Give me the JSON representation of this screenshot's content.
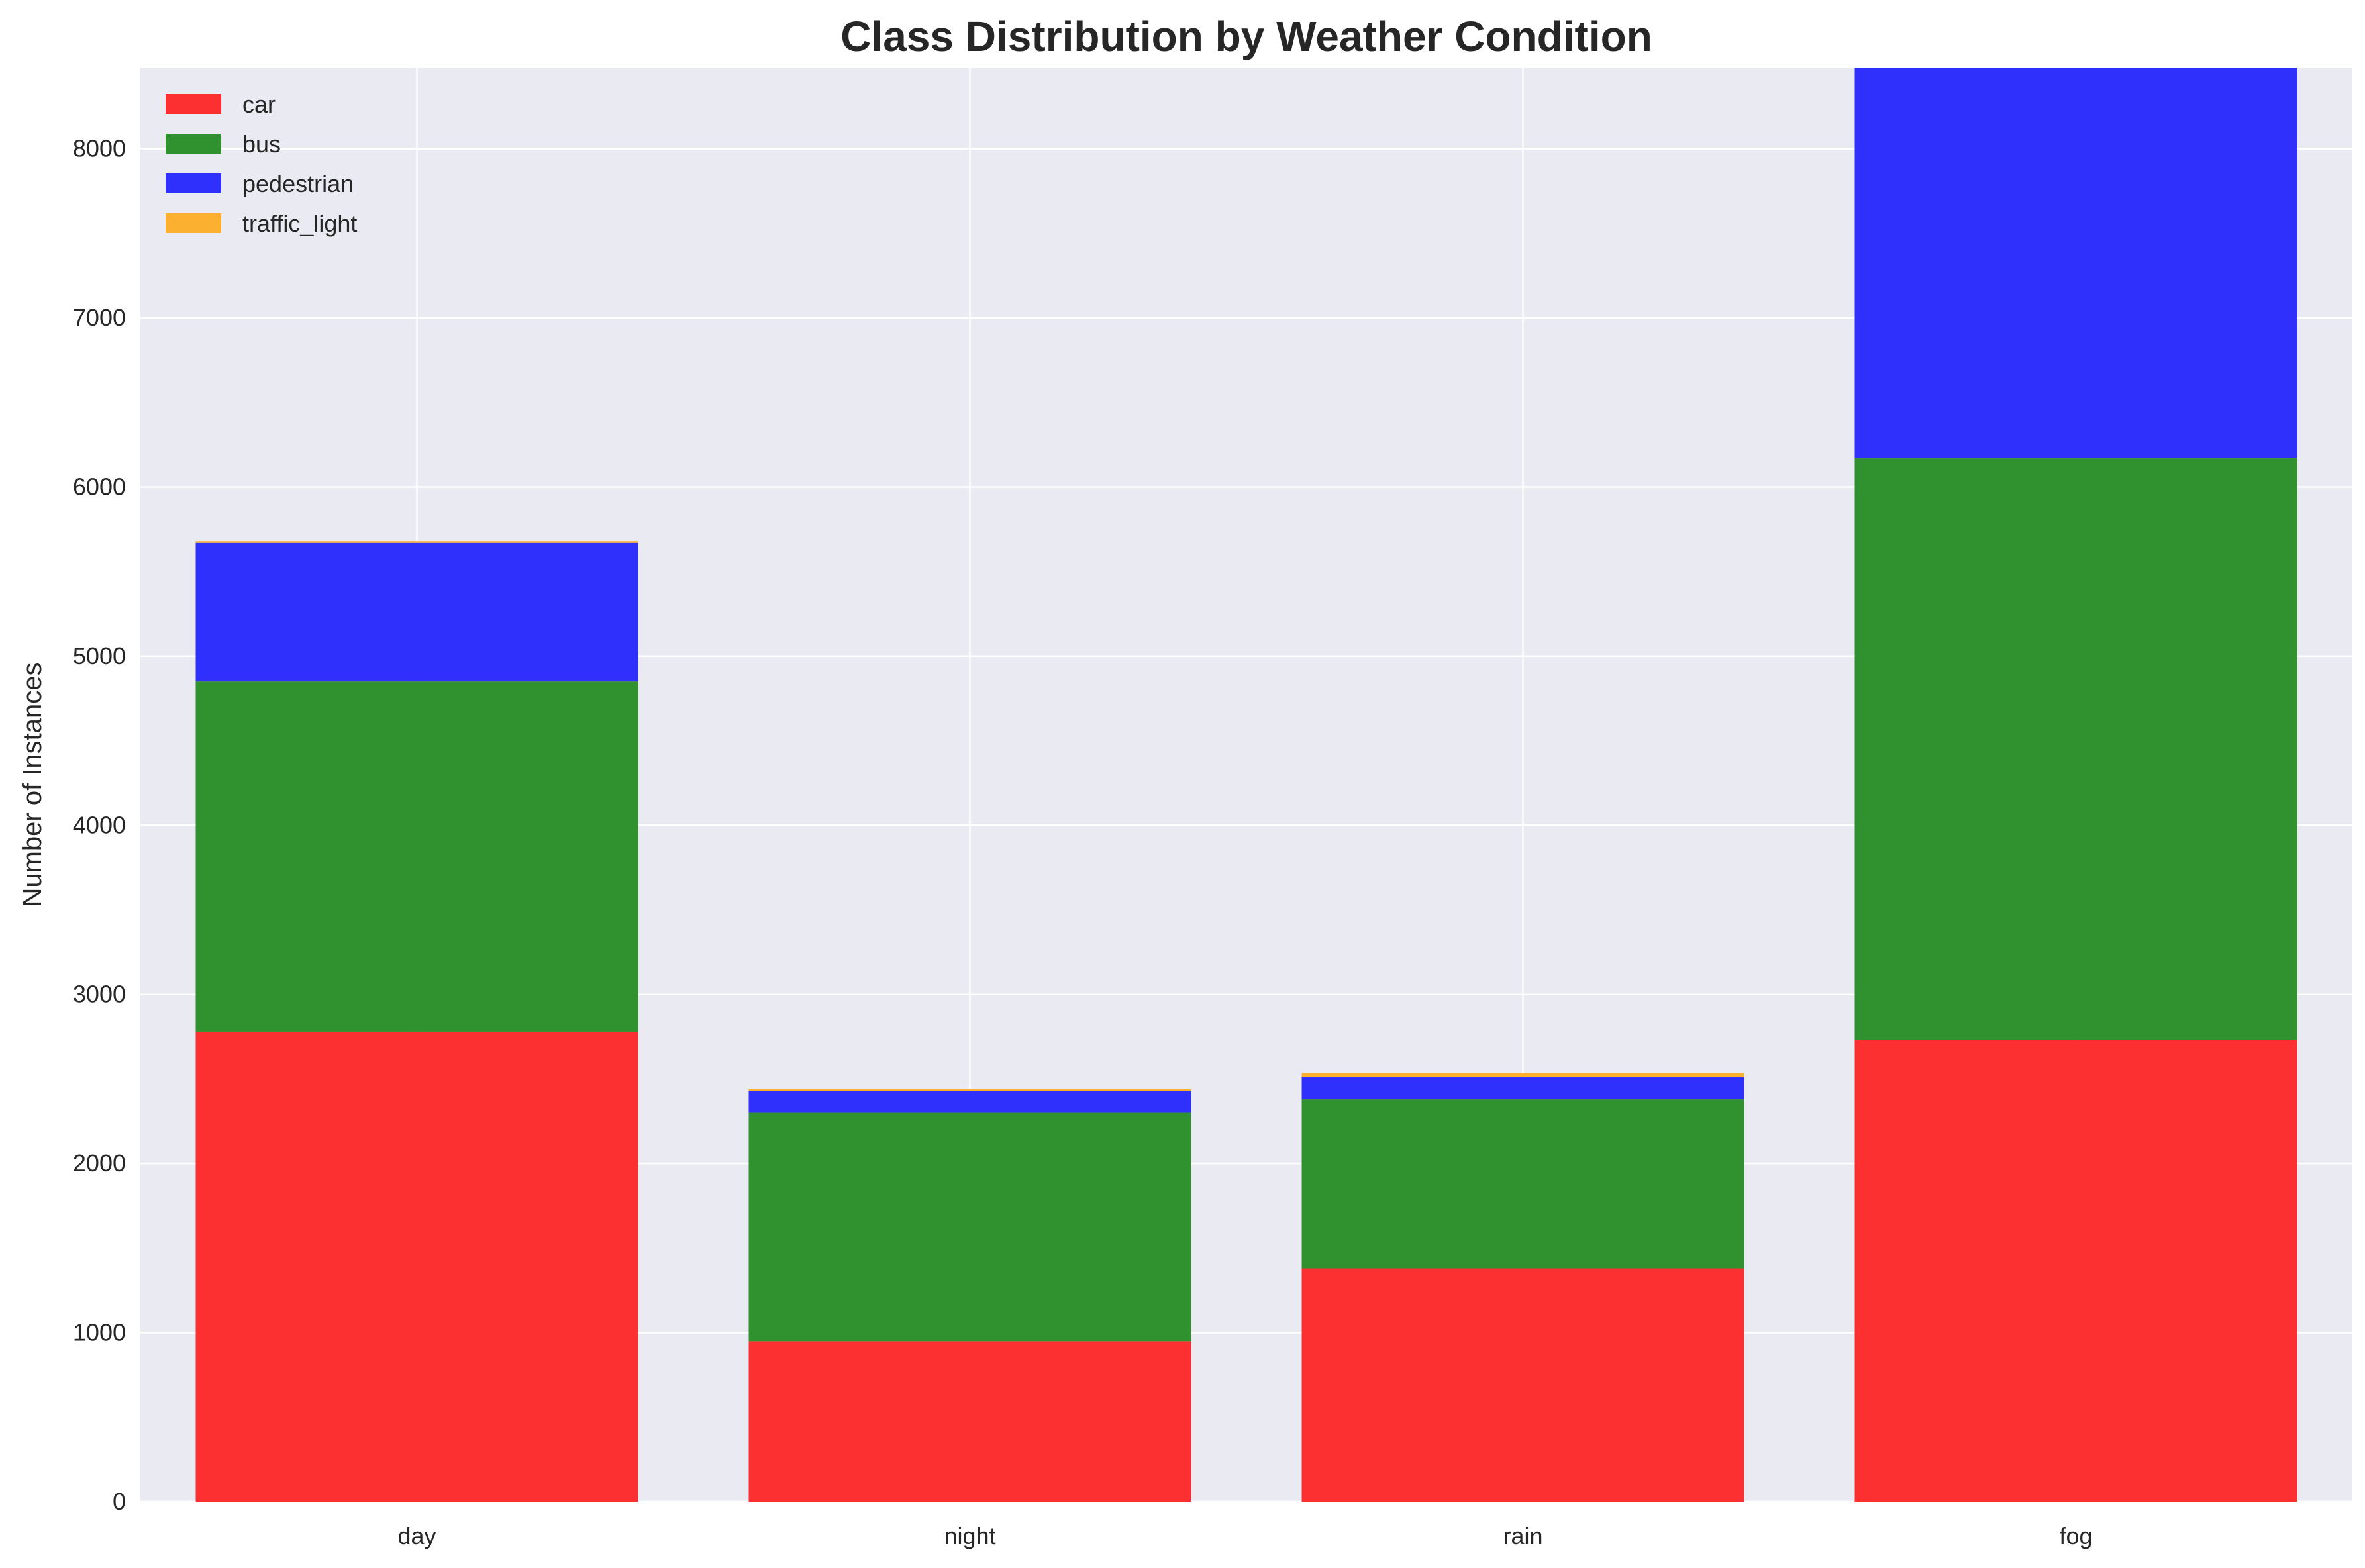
{
  "chart_data": {
    "type": "bar",
    "stacked": true,
    "title": "Class Distribution by Weather Condition",
    "xlabel": "",
    "ylabel": "Number of Instances",
    "categories": [
      "day",
      "night",
      "rain",
      "fog"
    ],
    "series": [
      {
        "name": "car",
        "color": "#fc3030",
        "values": [
          2780,
          950,
          1380,
          2730
        ]
      },
      {
        "name": "bus",
        "color": "#30922f",
        "values": [
          2070,
          1350,
          1000,
          3440
        ]
      },
      {
        "name": "pedestrian",
        "color": "#3030fc",
        "values": [
          820,
          130,
          130,
          2320
        ]
      },
      {
        "name": "traffic_light",
        "color": "#fcb030",
        "values": [
          10,
          10,
          25,
          0
        ]
      }
    ],
    "ylim": [
      0,
      8480
    ],
    "yticks": [
      0,
      1000,
      2000,
      3000,
      4000,
      5000,
      6000,
      7000,
      8000
    ],
    "grid": true,
    "legend_position": "top-left",
    "plot_background": "#eaeaf2"
  }
}
